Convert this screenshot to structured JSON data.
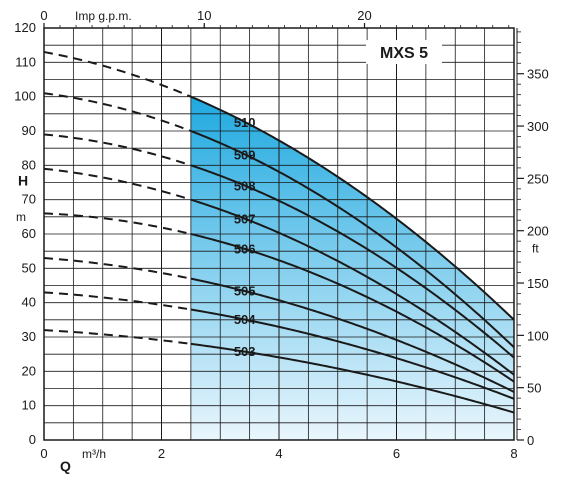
{
  "chart_data": {
    "type": "line",
    "title": "MXS 5",
    "x_bottom": {
      "label_symbol": "Q",
      "unit": "m³/h",
      "range": [
        0,
        8
      ],
      "ticks": [
        "0",
        "2",
        "4",
        "6",
        "8"
      ]
    },
    "x_top": {
      "label": "Imp g.p.m.",
      "ticks": [
        "0",
        "10",
        "20"
      ],
      "tick_values": [
        0,
        10,
        20
      ]
    },
    "y_left": {
      "label_symbol": "H",
      "unit": "m",
      "range": [
        0,
        120
      ],
      "ticks": [
        "0",
        "10",
        "20",
        "30",
        "40",
        "50",
        "60",
        "70",
        "80",
        "90",
        "100",
        "110",
        "120"
      ]
    },
    "y_right": {
      "unit": "ft",
      "ticks": [
        "0",
        "50",
        "100",
        "150",
        "200",
        "250",
        "300",
        "350"
      ],
      "tick_values": [
        0,
        50,
        100,
        150,
        200,
        250,
        300,
        350
      ]
    },
    "grid": true,
    "operating_region": {
      "q_min": 2.5,
      "color_top": "#1fa9e0",
      "color_bottom": "#eaf6fd"
    },
    "series": [
      {
        "name": "510",
        "h0": 113,
        "h_q25": 100,
        "end": [
          8,
          35
        ],
        "dashed_until": 2.5
      },
      {
        "name": "509",
        "h0": 101,
        "h_q25": 90,
        "end": [
          8,
          27
        ],
        "dashed_until": 2.5
      },
      {
        "name": "508",
        "h0": 89,
        "h_q25": 80,
        "end": [
          8,
          24
        ],
        "dashed_until": 2.5
      },
      {
        "name": "507",
        "h0": 79,
        "h_q25": 70,
        "end": [
          8,
          19
        ],
        "dashed_until": 2.5
      },
      {
        "name": "506",
        "h0": 66,
        "h_q25": 60,
        "end": [
          8,
          17
        ],
        "dashed_until": 2.5
      },
      {
        "name": "505",
        "h0": 53,
        "h_q25": 47,
        "end": [
          8,
          14
        ],
        "dashed_until": 2.5
      },
      {
        "name": "504",
        "h0": 43,
        "h_q25": 38,
        "end": [
          8,
          12
        ],
        "dashed_until": 2.5
      },
      {
        "name": "503",
        "h0": 32,
        "h_q25": 28,
        "end": [
          8,
          8
        ],
        "dashed_until": 2.5
      }
    ]
  }
}
